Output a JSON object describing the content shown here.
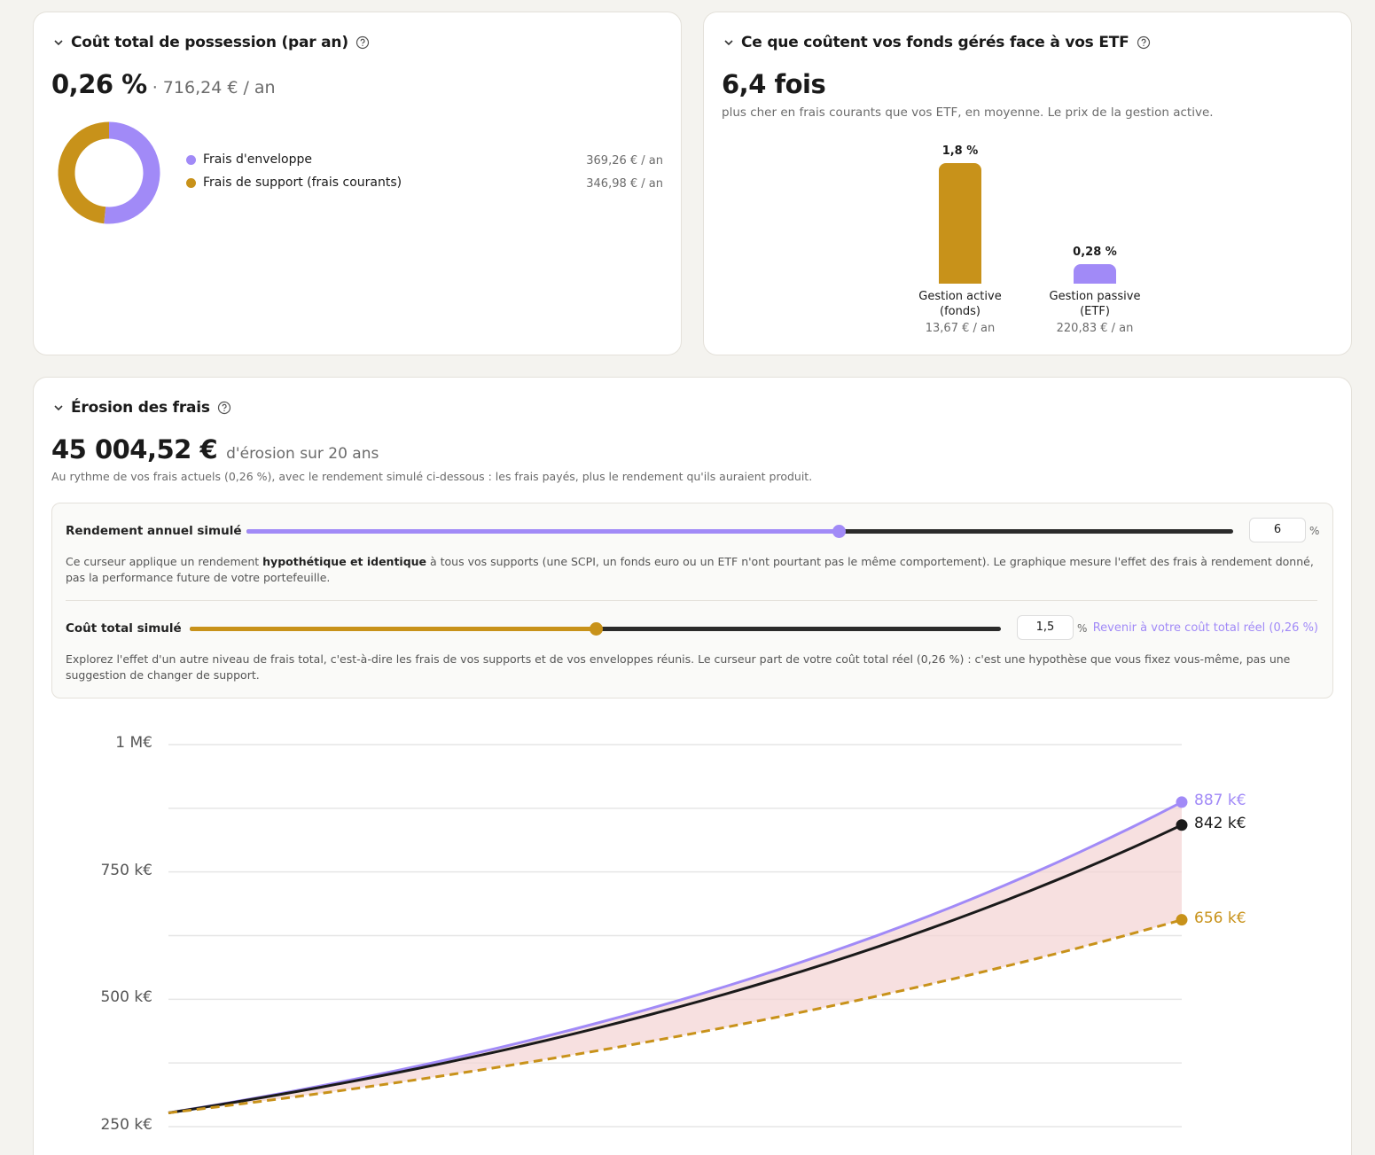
{
  "card1": {
    "title": "Coût total de possession (par an)",
    "main_value": "0,26 %",
    "sub_value": "· 716,24 € / an",
    "legend": [
      {
        "label": "Frais d'enveloppe",
        "value": "369,26 € / an",
        "color": "#a18af7",
        "share": 0.516
      },
      {
        "label": "Frais de support (frais courants)",
        "value": "346,98 € / an",
        "color": "#c8921a",
        "share": 0.484
      }
    ]
  },
  "card2": {
    "title": "Ce que coûtent vos fonds gérés face à vos ETF",
    "main_value": "6,4 fois",
    "subtitle": "plus cher en frais courants que vos ETF, en moyenne. Le prix de la gestion active.",
    "bars": [
      {
        "value_label": "1,8 %",
        "value": 1.8,
        "label_line1": "Gestion active",
        "label_line2": "(fonds)",
        "amount": "13,67 € / an",
        "color": "#c8921a"
      },
      {
        "value_label": "0,28 %",
        "value": 0.28,
        "label_line1": "Gestion passive",
        "label_line2": "(ETF)",
        "amount": "220,83 € / an",
        "color": "#a18af7"
      }
    ]
  },
  "card3": {
    "title": "Érosion des frais",
    "main_value": "45 004,52 €",
    "main_suffix": "d'érosion sur 20 ans",
    "note": "Au rythme de vos frais actuels (0,26 %), avec le rendement simulé ci-dessous : les frais payés, plus le rendement qu'ils auraient produit.",
    "slider1": {
      "label": "Rendement annuel simulé",
      "value": "6",
      "unit": "%",
      "fraction": 0.6,
      "color": "#a18af7",
      "desc_pre": "Ce curseur applique un rendement ",
      "desc_bold": "hypothétique et identique",
      "desc_post": " à tous vos supports (une SCPI, un fonds euro ou un ETF n'ont pourtant pas le même comportement). Le graphique mesure l'effet des frais à rendement donné, pas la performance future de votre portefeuille."
    },
    "slider2": {
      "label": "Coût total simulé",
      "value": "1,5",
      "unit": "%",
      "fraction": 0.5,
      "color": "#c8921a",
      "reset_link": "Revenir à votre coût total réel (0,26 %)",
      "desc": "Explorez l'effet d'un autre niveau de frais total, c'est-à-dire les frais de vos supports et de vos enveloppes réunis. Le curseur part de votre coût total réel (0,26 %) : c'est une hypothèse que vous fixez vous-même, pas une suggestion de changer de support."
    }
  },
  "chart_data": {
    "type": "line",
    "x": [
      0,
      20
    ],
    "ylim": [
      250,
      1000
    ],
    "y_ticks": [
      {
        "value": 250,
        "label": "250 k€"
      },
      {
        "value": 500,
        "label": "500 k€"
      },
      {
        "value": 750,
        "label": "750 k€"
      },
      {
        "value": 1000,
        "label": "1 M€"
      }
    ],
    "grid": true,
    "series": [
      {
        "key": "no_fees",
        "start": 277,
        "end": 887,
        "end_label": "887 k€",
        "color": "#a18af7",
        "dashed": false
      },
      {
        "key": "current_fees",
        "start": 277,
        "end": 842,
        "end_label": "842 k€",
        "color": "#1a1a1a",
        "dashed": false
      },
      {
        "key": "simulated_fees",
        "start": 277,
        "end": 656,
        "end_label": "656 k€",
        "color": "#c8921a",
        "dashed": true
      }
    ],
    "shade_color": "#f3d3d3"
  }
}
